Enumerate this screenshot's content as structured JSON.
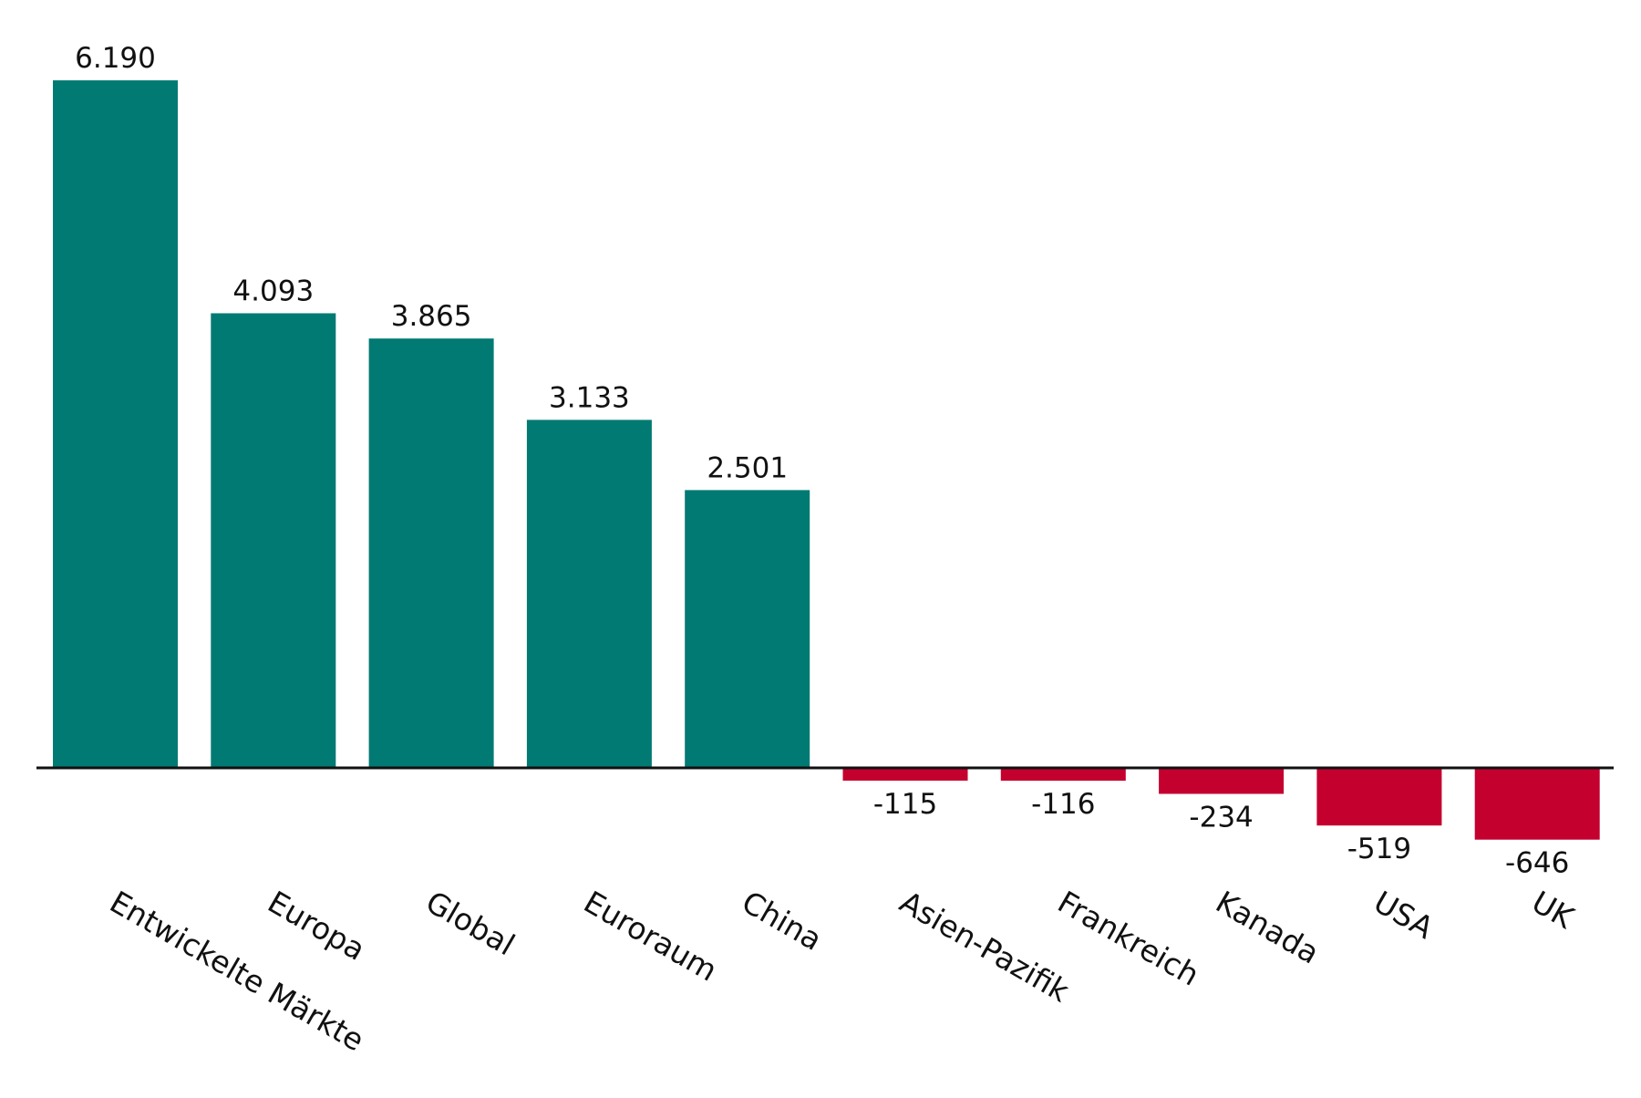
{
  "chart_data": {
    "type": "bar",
    "title": "",
    "xlabel": "",
    "ylabel": "",
    "categories": [
      "Entwickelte Märkte",
      "Europa",
      "Global",
      "Euroraum",
      "China",
      "Asien-Pazifik",
      "Frankreich",
      "Kanada",
      "USA",
      "UK"
    ],
    "values": [
      6190,
      4093,
      3865,
      3133,
      2501,
      -115,
      -116,
      -234,
      -519,
      -646
    ],
    "value_labels": [
      "6.190",
      "4.093",
      "3.865",
      "3.133",
      "2.501",
      "-115",
      "-116",
      "-234",
      "-519",
      "-646"
    ],
    "ylim": [
      -646,
      6190
    ],
    "grid": false,
    "legend": "none",
    "colors": {
      "positive": "#007a72",
      "negative": "#c4002f",
      "axis": "#111111"
    }
  }
}
